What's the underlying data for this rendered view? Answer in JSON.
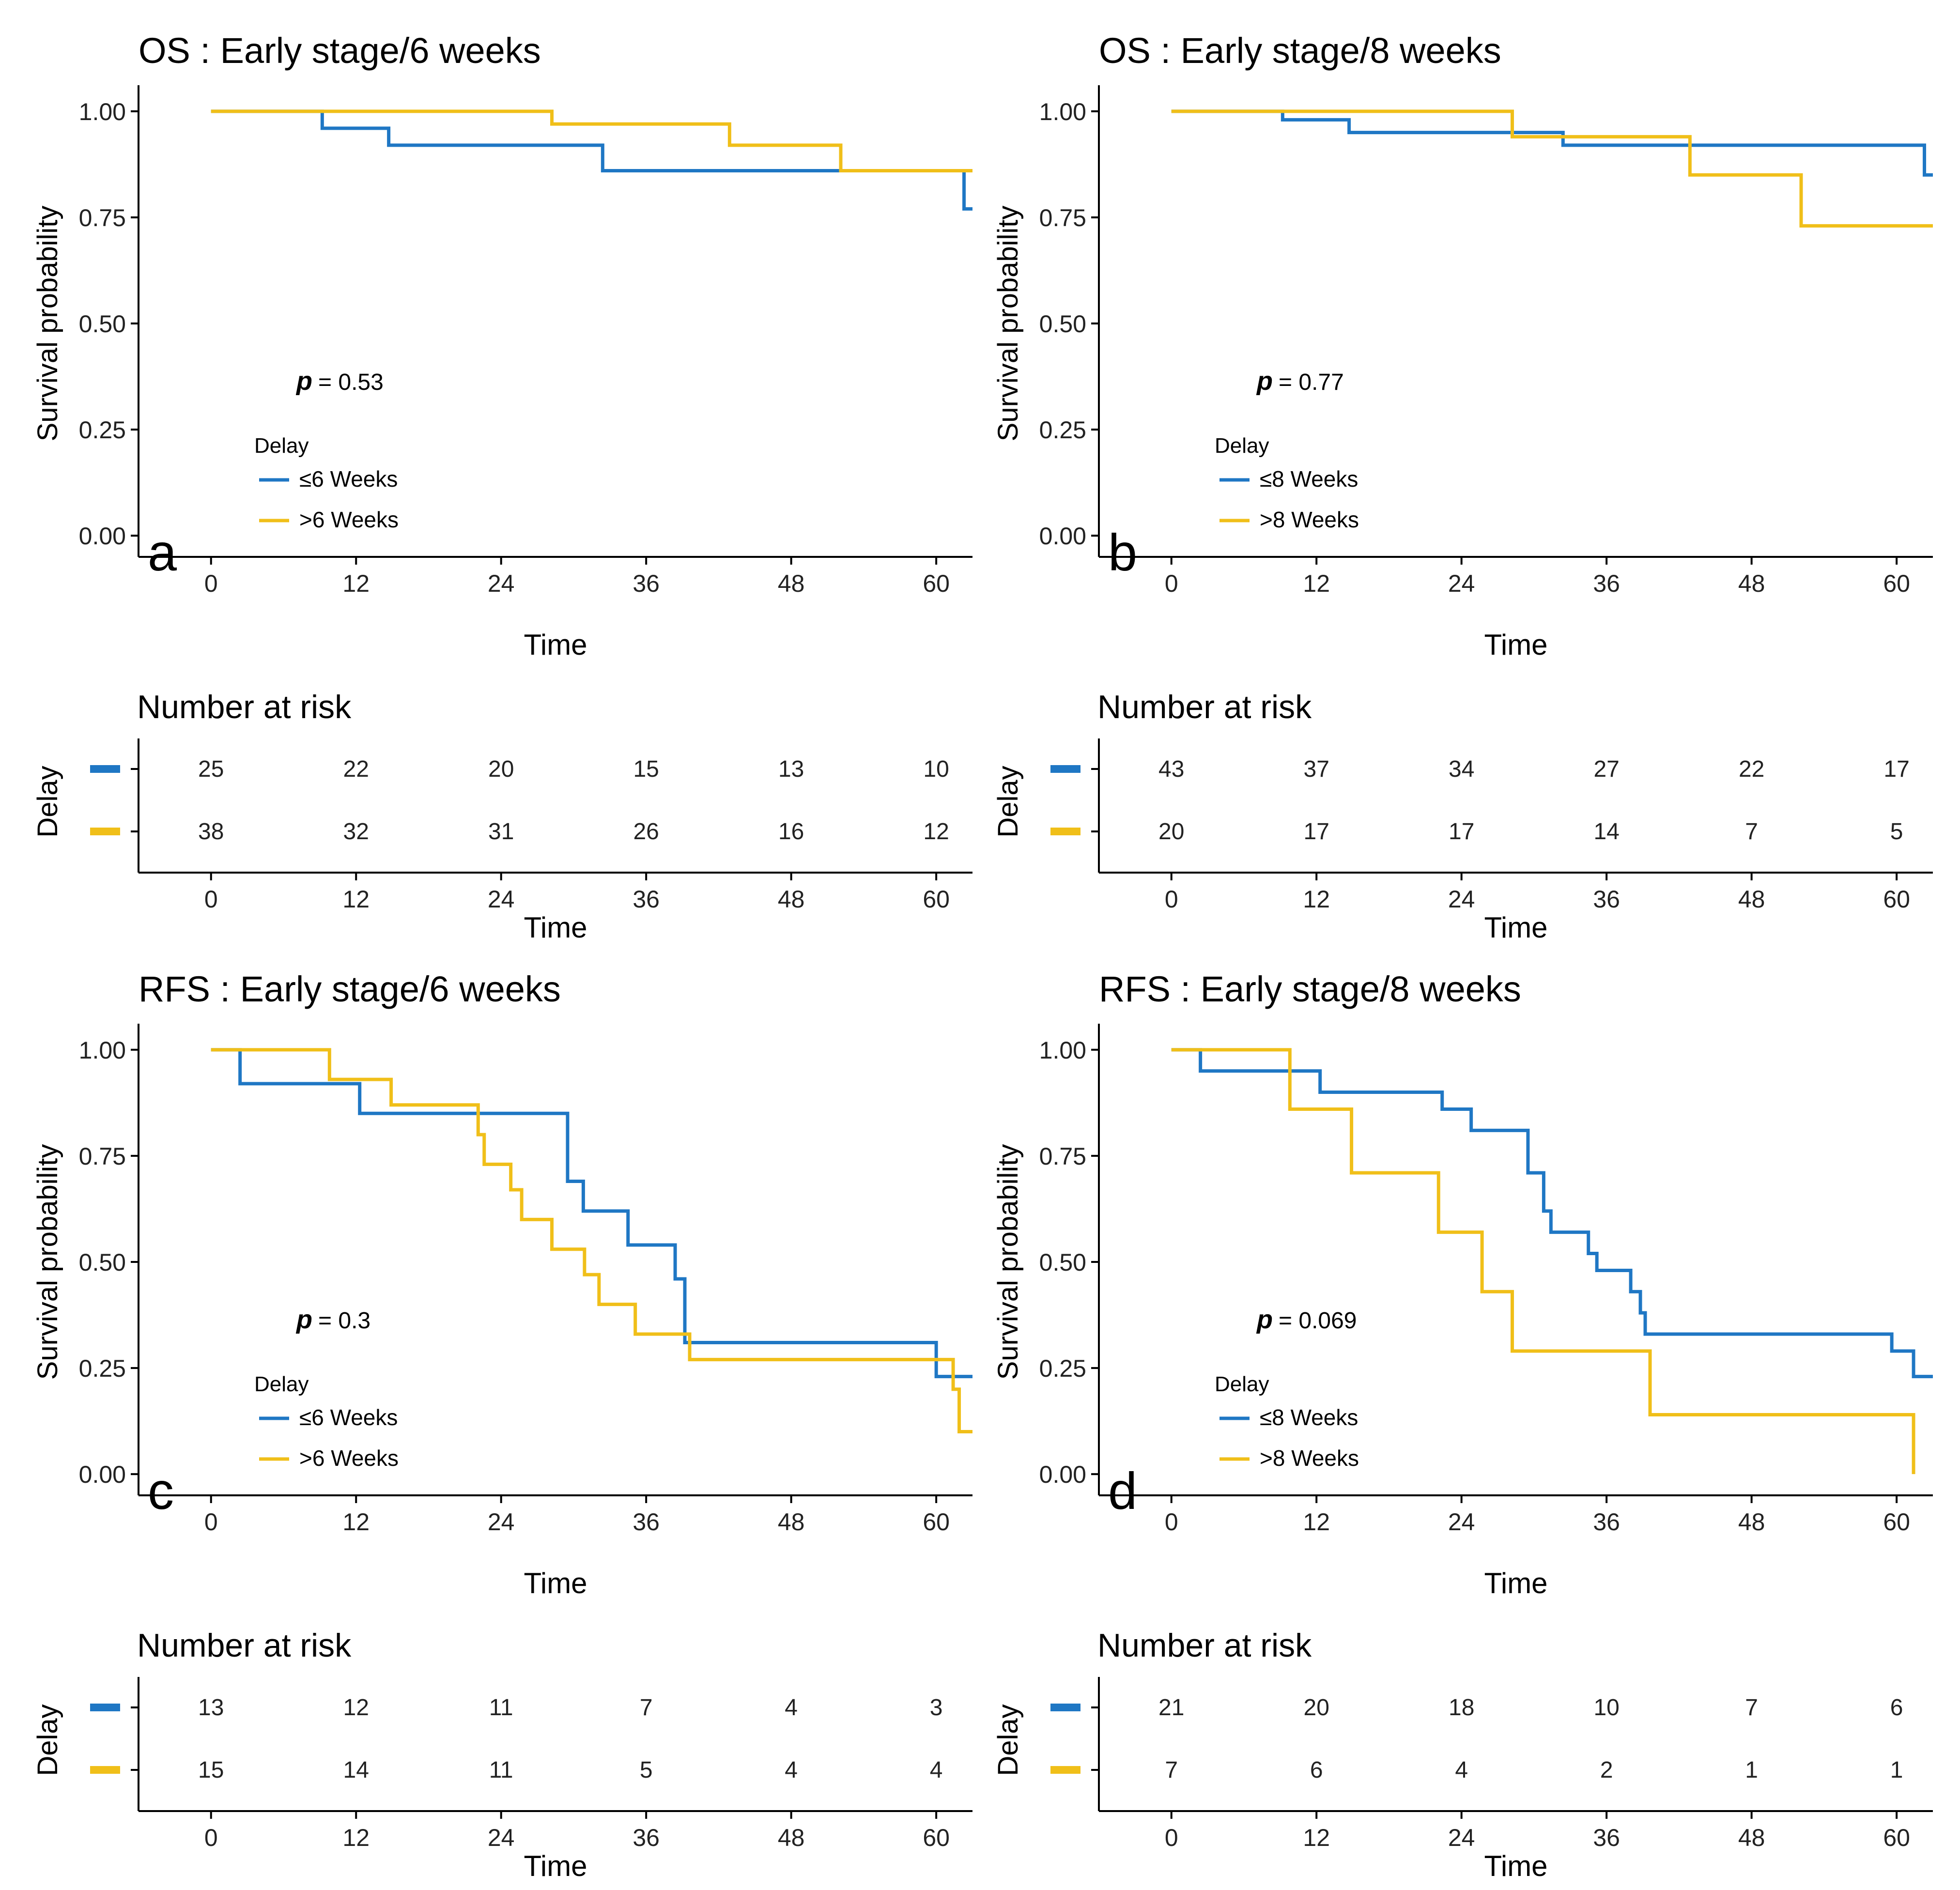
{
  "figure": {
    "blue": "#1f77c4",
    "yellow": "#f0bf19"
  },
  "chart_data": [
    {
      "id": "a",
      "type": "line",
      "title": "OS : Early stage/6 weeks",
      "panel_label": "a",
      "xlabel": "Time",
      "ylabel": "Survival probability",
      "xlim": [
        -6,
        63
      ],
      "ylim": [
        -0.05,
        1.05
      ],
      "x_ticks": [
        "0",
        "12",
        "24",
        "36",
        "48",
        "60"
      ],
      "y_ticks": [
        "0.00",
        "0.25",
        "0.50",
        "0.75",
        "1.00"
      ],
      "p_label": "p",
      "p_value": "= 0.53",
      "legend_title": "Delay",
      "series": [
        {
          "name": "≤6 Weeks",
          "x": [
            0,
            9.2,
            14.7,
            32.4,
            62.3,
            63
          ],
          "y": [
            1.0,
            0.96,
            0.92,
            0.86,
            0.77,
            0.77
          ]
        },
        {
          "name": ">6 Weeks",
          "x": [
            0,
            28.2,
            42.9,
            52.1,
            63
          ],
          "y": [
            1.0,
            0.97,
            0.92,
            0.86,
            0.86
          ]
        }
      ],
      "risk_title": "Number at risk",
      "risk_ylabel": "Delay",
      "risk_xlabel": "Time",
      "risk_table": [
        [
          "25",
          "22",
          "20",
          "15",
          "13",
          "10"
        ],
        [
          "38",
          "32",
          "31",
          "26",
          "16",
          "12"
        ]
      ]
    },
    {
      "id": "b",
      "type": "line",
      "title": "OS : Early stage/8 weeks",
      "panel_label": "b",
      "xlabel": "Time",
      "ylabel": "Survival probability",
      "xlim": [
        -6,
        63
      ],
      "ylim": [
        -0.05,
        1.05
      ],
      "x_ticks": [
        "0",
        "12",
        "24",
        "36",
        "48",
        "60"
      ],
      "y_ticks": [
        "0.00",
        "0.25",
        "0.50",
        "0.75",
        "1.00"
      ],
      "p_label": "p",
      "p_value": "= 0.77",
      "legend_title": "Delay",
      "series": [
        {
          "name": "≤8 Weeks",
          "x": [
            0,
            9.2,
            14.7,
            32.4,
            62.3,
            63
          ],
          "y": [
            1.0,
            0.98,
            0.95,
            0.92,
            0.85,
            0.85
          ]
        },
        {
          "name": ">8 Weeks",
          "x": [
            0,
            28.2,
            42.9,
            52.1,
            63
          ],
          "y": [
            1.0,
            0.94,
            0.85,
            0.73,
            0.73
          ]
        }
      ],
      "risk_title": "Number at risk",
      "risk_ylabel": "Delay",
      "risk_xlabel": "Time",
      "risk_table": [
        [
          "43",
          "37",
          "34",
          "27",
          "22",
          "17"
        ],
        [
          "20",
          "17",
          "17",
          "14",
          "7",
          "5"
        ]
      ]
    },
    {
      "id": "c",
      "type": "line",
      "title": "RFS : Early stage/6 weeks",
      "panel_label": "c",
      "xlabel": "Time",
      "ylabel": "Survival probability",
      "xlim": [
        -6,
        63
      ],
      "ylim": [
        -0.05,
        1.05
      ],
      "x_ticks": [
        "0",
        "12",
        "24",
        "36",
        "48",
        "60"
      ],
      "y_ticks": [
        "0.00",
        "0.25",
        "0.50",
        "0.75",
        "1.00"
      ],
      "p_label": "p",
      "p_value": "= 0.3",
      "legend_title": "Delay",
      "series": [
        {
          "name": "≤6 Weeks",
          "x": [
            0,
            2.4,
            12.3,
            29.5,
            30.8,
            34.5,
            38.4,
            39.2,
            60.0,
            63
          ],
          "y": [
            1.0,
            0.92,
            0.85,
            0.69,
            0.62,
            0.54,
            0.46,
            0.31,
            0.23,
            0.23
          ]
        },
        {
          "name": ">6 Weeks",
          "x": [
            0,
            9.8,
            14.9,
            22.1,
            22.6,
            24.8,
            25.7,
            28.2,
            30.9,
            32.1,
            35.1,
            39.6,
            61.4,
            61.9,
            63
          ],
          "y": [
            1.0,
            0.93,
            0.87,
            0.8,
            0.73,
            0.67,
            0.6,
            0.53,
            0.47,
            0.4,
            0.33,
            0.27,
            0.2,
            0.1,
            0.1
          ]
        }
      ],
      "risk_title": "Number at risk",
      "risk_ylabel": "Delay",
      "risk_xlabel": "Time",
      "risk_table": [
        [
          "13",
          "12",
          "11",
          "7",
          "4",
          "3"
        ],
        [
          "15",
          "14",
          "11",
          "5",
          "4",
          "4"
        ]
      ]
    },
    {
      "id": "d",
      "type": "line",
      "title": "RFS : Early stage/8 weeks",
      "panel_label": "d",
      "xlabel": "Time",
      "ylabel": "Survival probability",
      "xlim": [
        -6,
        63
      ],
      "ylim": [
        -0.05,
        1.05
      ],
      "x_ticks": [
        "0",
        "12",
        "24",
        "36",
        "48",
        "60"
      ],
      "y_ticks": [
        "0.00",
        "0.25",
        "0.50",
        "0.75",
        "1.00"
      ],
      "p_label": "p",
      "p_value": "= 0.069",
      "legend_title": "Delay",
      "series": [
        {
          "name": "≤8 Weeks",
          "x": [
            0,
            2.4,
            12.3,
            22.4,
            24.8,
            29.5,
            30.8,
            31.4,
            32.2,
            34.5,
            35.2,
            38.0,
            38.8,
            39.2,
            59.6,
            61.4,
            63
          ],
          "y": [
            1.0,
            0.95,
            0.9,
            0.86,
            0.81,
            0.71,
            0.62,
            0.57,
            0.57,
            0.52,
            0.48,
            0.43,
            0.38,
            0.33,
            0.29,
            0.23,
            0.23
          ]
        },
        {
          "name": ">8 Weeks",
          "x": [
            0,
            9.8,
            14.9,
            22.1,
            25.7,
            28.2,
            39.6,
            61.4
          ],
          "y": [
            1.0,
            0.86,
            0.71,
            0.57,
            0.43,
            0.29,
            0.14,
            0.0
          ]
        }
      ],
      "risk_title": "Number at risk",
      "risk_ylabel": "Delay",
      "risk_xlabel": "Time",
      "risk_table": [
        [
          "21",
          "20",
          "18",
          "10",
          "7",
          "6"
        ],
        [
          "7",
          "6",
          "4",
          "2",
          "1",
          "1"
        ]
      ]
    }
  ]
}
